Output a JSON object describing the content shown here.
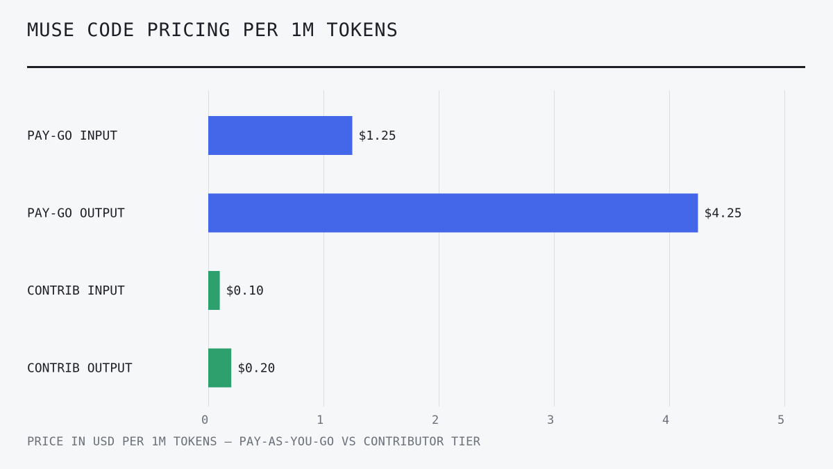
{
  "header": {
    "title": "MUSE CODE PRICING PER 1M TOKENS"
  },
  "caption": "PRICE IN USD PER 1M TOKENS — PAY-AS-YOU-GO VS CONTRIBUTOR TIER",
  "chart_data": {
    "type": "bar",
    "orientation": "horizontal",
    "title": "MUSE CODE PRICING PER 1M TOKENS",
    "categories": [
      "PAY-GO INPUT",
      "PAY-GO OUTPUT",
      "CONTRIB INPUT",
      "CONTRIB OUTPUT"
    ],
    "values": [
      1.25,
      4.25,
      0.1,
      0.2
    ],
    "data_labels": [
      "$1.25",
      "$4.25",
      "$0.10",
      "$0.20"
    ],
    "bar_colors": [
      "#4466e8",
      "#4466e8",
      "#2ea06e",
      "#2ea06e"
    ],
    "xlim": [
      0,
      5
    ],
    "xticks": [
      0,
      1,
      2,
      3,
      4,
      5
    ],
    "xtick_labels": [
      "0",
      "1",
      "2",
      "3",
      "4",
      "5"
    ],
    "grid": "vertical",
    "legend": "none"
  }
}
